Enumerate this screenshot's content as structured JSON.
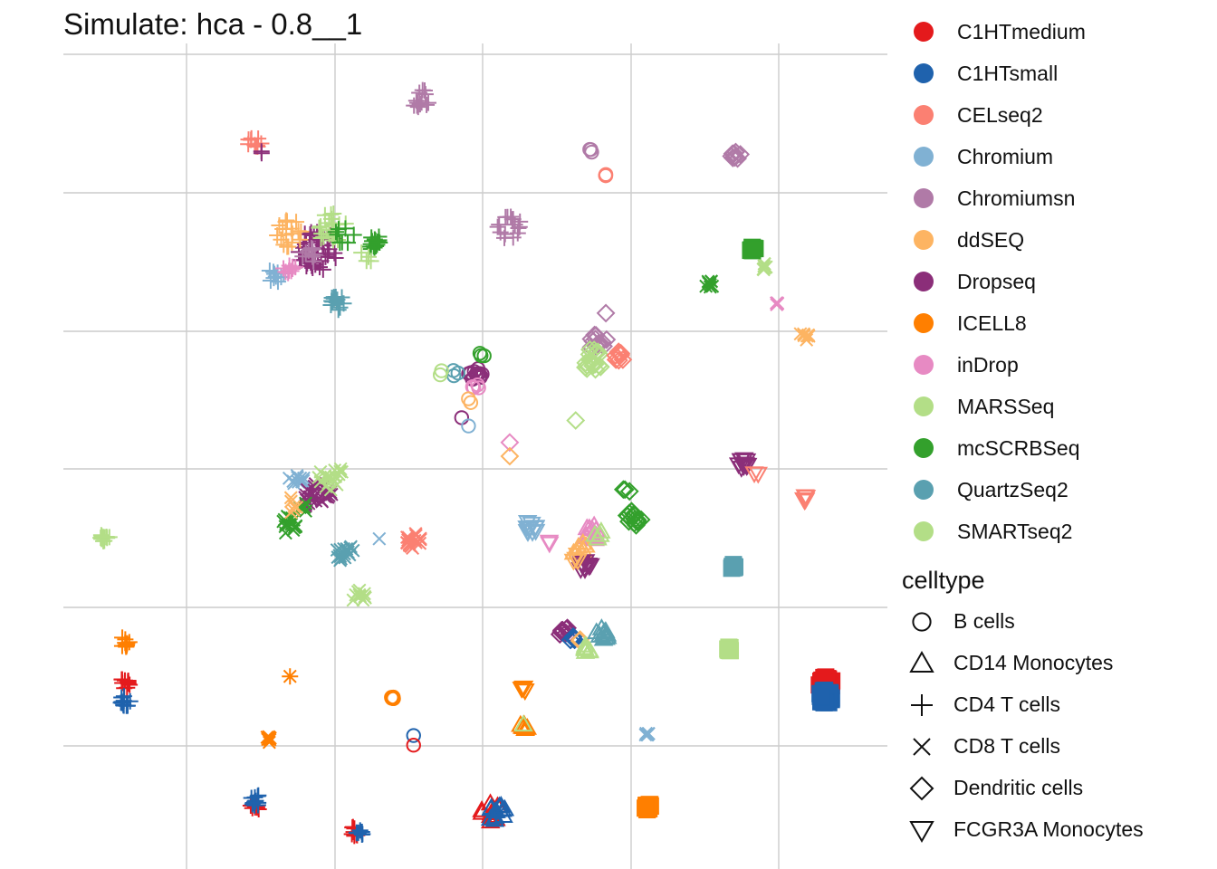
{
  "chart_data": {
    "type": "scatter",
    "title": "Simulate: hca - 0.8__1",
    "xlabel": "",
    "ylabel": "",
    "grid": true,
    "axis_ticks_shown": false,
    "xlim": [
      0,
      6
    ],
    "ylim": [
      0,
      6
    ],
    "legend_position": "right",
    "color_legend": {
      "title": "",
      "entries": [
        {
          "name": "C1HTmedium",
          "color": "#e41a1c"
        },
        {
          "name": "C1HTsmall",
          "color": "#1f62ad"
        },
        {
          "name": "CELseq2",
          "color": "#fb8072"
        },
        {
          "name": "Chromium",
          "color": "#80b1d3"
        },
        {
          "name": "Chromiumsn",
          "color": "#b07aa7"
        },
        {
          "name": "ddSEQ",
          "color": "#fdb462"
        },
        {
          "name": "Dropseq",
          "color": "#8b2e79"
        },
        {
          "name": "ICELL8",
          "color": "#ff7f00"
        },
        {
          "name": "inDrop",
          "color": "#e78ac3"
        },
        {
          "name": "MARSSeq",
          "color": "#b3de87"
        },
        {
          "name": "mcSCRBSeq",
          "color": "#33a02c"
        },
        {
          "name": "QuartzSeq2",
          "color": "#5aa0b0"
        },
        {
          "name": "SMARTseq2",
          "color": "#b3de87"
        }
      ]
    },
    "shape_legend": {
      "title": "celltype",
      "entries": [
        {
          "name": "B cells",
          "shape": "circle"
        },
        {
          "name": "CD14 Monocytes",
          "shape": "triangle"
        },
        {
          "name": "CD4 T cells",
          "shape": "plus"
        },
        {
          "name": "CD8 T cells",
          "shape": "cross"
        },
        {
          "name": "Dendritic cells",
          "shape": "diamond"
        },
        {
          "name": "FCGR3A Monocytes",
          "shape": "triangle-down"
        }
      ]
    },
    "clusters": [
      {
        "x": 2.6,
        "y": 5.6,
        "group": "Chromiumsn",
        "shape": "plus",
        "n": 14,
        "spread": 0.07
      },
      {
        "x": 1.4,
        "y": 5.28,
        "group": "CELseq2",
        "shape": "plus",
        "n": 10,
        "spread": 0.06
      },
      {
        "x": 1.45,
        "y": 5.22,
        "group": "Dropseq",
        "shape": "plus",
        "n": 2,
        "spread": 0.03
      },
      {
        "x": 3.85,
        "y": 5.22,
        "group": "Chromiumsn",
        "shape": "circle",
        "n": 3,
        "spread": 0.02
      },
      {
        "x": 3.95,
        "y": 5.04,
        "group": "CELseq2",
        "shape": "circle",
        "n": 3,
        "spread": 0.02
      },
      {
        "x": 4.9,
        "y": 5.19,
        "group": "Chromiumsn",
        "shape": "diamond",
        "n": 8,
        "spread": 0.04
      },
      {
        "x": 3.25,
        "y": 4.66,
        "group": "Chromiumsn",
        "shape": "plus",
        "n": 16,
        "spread": 0.09
      },
      {
        "x": 1.85,
        "y": 4.5,
        "group": "Dropseq",
        "shape": "plus",
        "n": 50,
        "spread": 0.15
      },
      {
        "x": 1.65,
        "y": 4.62,
        "group": "ddSEQ",
        "shape": "plus",
        "n": 18,
        "spread": 0.1
      },
      {
        "x": 1.95,
        "y": 4.66,
        "group": "SMARTseq2",
        "shape": "plus",
        "n": 22,
        "spread": 0.11
      },
      {
        "x": 2.05,
        "y": 4.62,
        "group": "mcSCRBSeq",
        "shape": "plus",
        "n": 8,
        "spread": 0.08
      },
      {
        "x": 2.25,
        "y": 4.56,
        "group": "mcSCRBSeq",
        "shape": "plus",
        "n": 16,
        "spread": 0.06
      },
      {
        "x": 1.55,
        "y": 4.32,
        "group": "Chromium",
        "shape": "plus",
        "n": 10,
        "spread": 0.06
      },
      {
        "x": 1.65,
        "y": 4.36,
        "group": "inDrop",
        "shape": "plus",
        "n": 10,
        "spread": 0.05
      },
      {
        "x": 1.8,
        "y": 4.46,
        "group": "Chromiumsn",
        "shape": "plus",
        "n": 10,
        "spread": 0.06
      },
      {
        "x": 2.2,
        "y": 4.44,
        "group": "MARSSeq",
        "shape": "plus",
        "n": 4,
        "spread": 0.05
      },
      {
        "x": 2.0,
        "y": 4.12,
        "group": "QuartzSeq2",
        "shape": "plus",
        "n": 14,
        "spread": 0.06
      },
      {
        "x": 4.7,
        "y": 4.25,
        "group": "mcSCRBSeq",
        "shape": "cross",
        "n": 8,
        "spread": 0.03
      },
      {
        "x": 5.1,
        "y": 4.38,
        "group": "MARSSeq",
        "shape": "cross",
        "n": 8,
        "spread": 0.03
      },
      {
        "x": 5.2,
        "y": 4.12,
        "group": "inDrop",
        "shape": "cross",
        "n": 4,
        "spread": 0.02
      },
      {
        "x": 5.4,
        "y": 3.88,
        "group": "ddSEQ",
        "shape": "cross",
        "n": 8,
        "spread": 0.04
      },
      {
        "x": 3.95,
        "y": 4.04,
        "group": "Chromiumsn",
        "shape": "diamond",
        "n": 1,
        "spread": 0
      },
      {
        "x": 3.9,
        "y": 3.82,
        "group": "Chromiumsn",
        "shape": "diamond",
        "n": 14,
        "spread": 0.07
      },
      {
        "x": 3.85,
        "y": 3.7,
        "group": "SMARTseq2",
        "shape": "diamond",
        "n": 18,
        "spread": 0.08
      },
      {
        "x": 4.05,
        "y": 3.72,
        "group": "CELseq2",
        "shape": "diamond",
        "n": 8,
        "spread": 0.05
      },
      {
        "x": 3.0,
        "y": 3.6,
        "group": "Dropseq",
        "shape": "circle",
        "n": 14,
        "spread": 0.05
      },
      {
        "x": 2.85,
        "y": 3.61,
        "group": "QuartzSeq2",
        "shape": "circle",
        "n": 3,
        "spread": 0.03
      },
      {
        "x": 2.75,
        "y": 3.61,
        "group": "SMARTseq2",
        "shape": "circle",
        "n": 2,
        "spread": 0.02
      },
      {
        "x": 3.05,
        "y": 3.74,
        "group": "mcSCRBSeq",
        "shape": "circle",
        "n": 3,
        "spread": 0.02
      },
      {
        "x": 3.0,
        "y": 3.5,
        "group": "inDrop",
        "shape": "circle",
        "n": 4,
        "spread": 0.03
      },
      {
        "x": 2.95,
        "y": 3.4,
        "group": "ddSEQ",
        "shape": "circle",
        "n": 2,
        "spread": 0.02
      },
      {
        "x": 2.9,
        "y": 3.28,
        "group": "Dropseq",
        "shape": "circle",
        "n": 1,
        "spread": 0
      },
      {
        "x": 2.95,
        "y": 3.22,
        "group": "Chromium",
        "shape": "circle",
        "n": 1,
        "spread": 0
      },
      {
        "x": 3.73,
        "y": 3.26,
        "group": "SMARTseq2",
        "shape": "diamond",
        "n": 1,
        "spread": 0
      },
      {
        "x": 3.25,
        "y": 3.1,
        "group": "inDrop",
        "shape": "diamond",
        "n": 1,
        "spread": 0
      },
      {
        "x": 3.25,
        "y": 3.0,
        "group": "ddSEQ",
        "shape": "diamond",
        "n": 1,
        "spread": 0
      },
      {
        "x": 4.95,
        "y": 2.95,
        "group": "Dropseq",
        "shape": "triangle-down",
        "n": 12,
        "spread": 0.04
      },
      {
        "x": 5.05,
        "y": 2.88,
        "group": "CELseq2",
        "shape": "triangle-down",
        "n": 2,
        "spread": 0.02
      },
      {
        "x": 5.4,
        "y": 2.7,
        "group": "CELseq2",
        "shape": "triangle-down",
        "n": 6,
        "spread": 0.03
      },
      {
        "x": 1.7,
        "y": 2.85,
        "group": "Chromium",
        "shape": "cross",
        "n": 10,
        "spread": 0.06
      },
      {
        "x": 1.85,
        "y": 2.7,
        "group": "Dropseq",
        "shape": "cross",
        "n": 30,
        "spread": 0.11
      },
      {
        "x": 1.95,
        "y": 2.85,
        "group": "SMARTseq2",
        "shape": "cross",
        "n": 20,
        "spread": 0.1
      },
      {
        "x": 1.65,
        "y": 2.5,
        "group": "mcSCRBSeq",
        "shape": "cross",
        "n": 16,
        "spread": 0.07
      },
      {
        "x": 1.75,
        "y": 2.62,
        "group": "mcSCRBSeq",
        "shape": "cross",
        "n": 4,
        "spread": 0.05
      },
      {
        "x": 1.65,
        "y": 2.65,
        "group": "ddSEQ",
        "shape": "cross",
        "n": 6,
        "spread": 0.06
      },
      {
        "x": 2.05,
        "y": 2.3,
        "group": "QuartzSeq2",
        "shape": "cross",
        "n": 16,
        "spread": 0.07
      },
      {
        "x": 2.15,
        "y": 1.98,
        "group": "SMARTseq2",
        "shape": "cross",
        "n": 10,
        "spread": 0.05
      },
      {
        "x": 0.3,
        "y": 2.42,
        "group": "MARSSeq",
        "shape": "plus",
        "n": 12,
        "spread": 0.04
      },
      {
        "x": 2.3,
        "y": 2.4,
        "group": "Chromium",
        "shape": "cross",
        "n": 1,
        "spread": 0
      },
      {
        "x": 2.55,
        "y": 2.38,
        "group": "CELseq2",
        "shape": "cross",
        "n": 18,
        "spread": 0.06
      },
      {
        "x": 3.4,
        "y": 2.48,
        "group": "Chromium",
        "shape": "triangle-down",
        "n": 10,
        "spread": 0.05
      },
      {
        "x": 3.55,
        "y": 2.38,
        "group": "inDrop",
        "shape": "triangle-down",
        "n": 2,
        "spread": 0.02
      },
      {
        "x": 3.85,
        "y": 2.44,
        "group": "inDrop",
        "shape": "triangle",
        "n": 14,
        "spread": 0.06
      },
      {
        "x": 3.75,
        "y": 2.34,
        "group": "ddSEQ",
        "shape": "triangle",
        "n": 8,
        "spread": 0.06
      },
      {
        "x": 3.9,
        "y": 2.42,
        "group": "SMARTseq2",
        "shape": "triangle",
        "n": 4,
        "spread": 0.04
      },
      {
        "x": 3.8,
        "y": 2.2,
        "group": "Dropseq",
        "shape": "triangle-down",
        "n": 10,
        "spread": 0.04
      },
      {
        "x": 3.75,
        "y": 2.25,
        "group": "ddSEQ",
        "shape": "triangle-down",
        "n": 4,
        "spread": 0.04
      },
      {
        "x": 4.15,
        "y": 2.55,
        "group": "mcSCRBSeq",
        "shape": "diamond",
        "n": 16,
        "spread": 0.06
      },
      {
        "x": 4.1,
        "y": 2.75,
        "group": "mcSCRBSeq",
        "shape": "diamond",
        "n": 3,
        "spread": 0.03
      },
      {
        "x": 3.65,
        "y": 1.72,
        "group": "Dropseq",
        "shape": "diamond",
        "n": 8,
        "spread": 0.04
      },
      {
        "x": 3.7,
        "y": 1.68,
        "group": "C1HTsmall",
        "shape": "diamond",
        "n": 4,
        "spread": 0.03
      },
      {
        "x": 3.75,
        "y": 1.66,
        "group": "ddSEQ",
        "shape": "diamond",
        "n": 2,
        "spread": 0.02
      },
      {
        "x": 3.92,
        "y": 1.7,
        "group": "QuartzSeq2",
        "shape": "triangle",
        "n": 12,
        "spread": 0.05
      },
      {
        "x": 3.8,
        "y": 1.6,
        "group": "MARSSeq",
        "shape": "triangle",
        "n": 6,
        "spread": 0.04
      },
      {
        "x": 5.02,
        "y": 4.5,
        "group": "mcSCRBSeq",
        "shape": "square",
        "n": 8,
        "spread": 0.02
      },
      {
        "x": 4.88,
        "y": 2.2,
        "group": "QuartzSeq2",
        "shape": "square",
        "n": 8,
        "spread": 0.02
      },
      {
        "x": 4.85,
        "y": 1.6,
        "group": "SMARTseq2",
        "shape": "square",
        "n": 6,
        "spread": 0.015
      },
      {
        "x": 5.55,
        "y": 1.35,
        "group": "C1HTmedium",
        "shape": "square",
        "n": 40,
        "spread": 0.05
      },
      {
        "x": 5.55,
        "y": 1.25,
        "group": "C1HTsmall",
        "shape": "square",
        "n": 50,
        "spread": 0.05
      },
      {
        "x": 0.45,
        "y": 1.65,
        "group": "ICELL8",
        "shape": "plus",
        "n": 10,
        "spread": 0.04
      },
      {
        "x": 0.45,
        "y": 1.35,
        "group": "C1HTmedium",
        "shape": "plus",
        "n": 12,
        "spread": 0.04
      },
      {
        "x": 0.45,
        "y": 1.22,
        "group": "C1HTsmall",
        "shape": "plus",
        "n": 14,
        "spread": 0.04
      },
      {
        "x": 1.65,
        "y": 1.4,
        "group": "ICELL8",
        "shape": "star",
        "n": 1,
        "spread": 0
      },
      {
        "x": 1.5,
        "y": 0.94,
        "group": "ICELL8",
        "shape": "cross",
        "n": 8,
        "spread": 0.025
      },
      {
        "x": 2.4,
        "y": 1.25,
        "group": "ICELL8",
        "shape": "circle",
        "n": 6,
        "spread": 0.02
      },
      {
        "x": 2.55,
        "y": 0.97,
        "group": "C1HTsmall",
        "shape": "circle",
        "n": 1,
        "spread": 0
      },
      {
        "x": 2.55,
        "y": 0.9,
        "group": "C1HTmedium",
        "shape": "circle",
        "n": 1,
        "spread": 0
      },
      {
        "x": 3.35,
        "y": 1.3,
        "group": "ICELL8",
        "shape": "triangle-down",
        "n": 5,
        "spread": 0.02
      },
      {
        "x": 3.35,
        "y": 1.03,
        "group": "ICELL8",
        "shape": "triangle",
        "n": 8,
        "spread": 0.03
      },
      {
        "x": 3.35,
        "y": 1.05,
        "group": "SMARTseq2",
        "shape": "triangle",
        "n": 1,
        "spread": 0
      },
      {
        "x": 4.25,
        "y": 0.97,
        "group": "Chromium",
        "shape": "cross",
        "n": 6,
        "spread": 0.02
      },
      {
        "x": 4.25,
        "y": 0.45,
        "group": "ICELL8",
        "shape": "square",
        "n": 10,
        "spread": 0.03
      },
      {
        "x": 1.4,
        "y": 0.45,
        "group": "C1HTmedium",
        "shape": "plus",
        "n": 8,
        "spread": 0.04
      },
      {
        "x": 1.4,
        "y": 0.5,
        "group": "C1HTsmall",
        "shape": "plus",
        "n": 12,
        "spread": 0.04
      },
      {
        "x": 2.12,
        "y": 0.28,
        "group": "C1HTmedium",
        "shape": "plus",
        "n": 8,
        "spread": 0.04
      },
      {
        "x": 2.15,
        "y": 0.26,
        "group": "C1HTsmall",
        "shape": "plus",
        "n": 8,
        "spread": 0.03
      },
      {
        "x": 3.12,
        "y": 0.4,
        "group": "C1HTmedium",
        "shape": "triangle",
        "n": 12,
        "spread": 0.08
      },
      {
        "x": 3.15,
        "y": 0.42,
        "group": "C1HTsmall",
        "shape": "triangle",
        "n": 12,
        "spread": 0.07
      }
    ]
  }
}
